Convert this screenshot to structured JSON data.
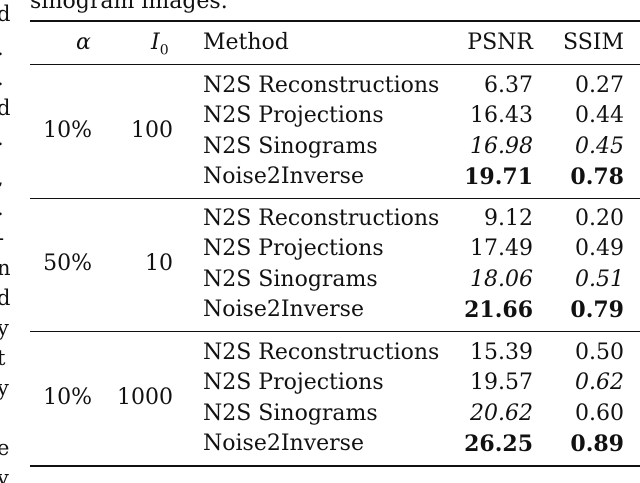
{
  "caption": "sinogram images.",
  "left_column_fragments": [
    "d",
    ".",
    ".",
    "d",
    ".",
    ",",
    ".",
    "-",
    "n",
    "d",
    "y",
    "t",
    "y",
    "e",
    "y"
  ],
  "table": {
    "headers": {
      "alpha": "α",
      "i0": "I",
      "i0_sub": "0",
      "method": "Method",
      "psnr": "PSNR",
      "ssim": "SSIM"
    },
    "groups": [
      {
        "alpha": "10%",
        "i0": "100",
        "rows": [
          {
            "method": "N2S Reconstructions",
            "psnr": "6.37",
            "ssim": "0.27"
          },
          {
            "method": "N2S Projections",
            "psnr": "16.43",
            "ssim": "0.44"
          },
          {
            "method": "N2S Sinograms",
            "psnr": "16.98",
            "ssim": "0.45"
          },
          {
            "method": "Noise2Inverse",
            "psnr": "19.71",
            "ssim": "0.78"
          }
        ]
      },
      {
        "alpha": "50%",
        "i0": "10",
        "rows": [
          {
            "method": "N2S Reconstructions",
            "psnr": "9.12",
            "ssim": "0.20"
          },
          {
            "method": "N2S Projections",
            "psnr": "17.49",
            "ssim": "0.49"
          },
          {
            "method": "N2S Sinograms",
            "psnr": "18.06",
            "ssim": "0.51"
          },
          {
            "method": "Noise2Inverse",
            "psnr": "21.66",
            "ssim": "0.79"
          }
        ]
      },
      {
        "alpha": "10%",
        "i0": "1000",
        "rows": [
          {
            "method": "N2S Reconstructions",
            "psnr": "15.39",
            "ssim": "0.50"
          },
          {
            "method": "N2S Projections",
            "psnr": "19.57",
            "ssim": "0.62"
          },
          {
            "method": "N2S Sinograms",
            "psnr": "20.62",
            "ssim": "0.60"
          },
          {
            "method": "Noise2Inverse",
            "psnr": "26.25",
            "ssim": "0.89"
          }
        ]
      }
    ]
  }
}
